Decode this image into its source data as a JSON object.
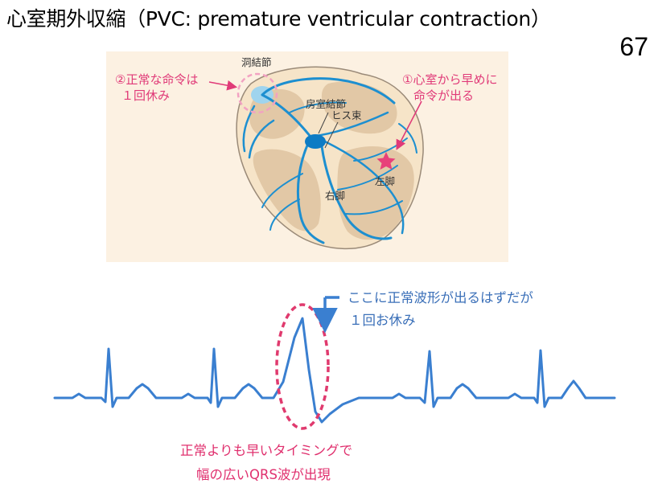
{
  "slide": {
    "title": "心室期外収縮（PVC: premature ventricular contraction）",
    "page_number": "67"
  },
  "heart": {
    "callout_left": [
      "②正常な命令は",
      "１回休み"
    ],
    "callout_right": [
      "①心室から早めに",
      "命令が出る"
    ],
    "sa_node": "洞結節",
    "av_node": "房室結節",
    "his_bundle": "ヒス束",
    "left_bundle": "左脚",
    "right_bundle": "右脚"
  },
  "ecg": {
    "note_top": [
      "ここに正常波形が出るはずだが",
      "１回お休み"
    ],
    "note_bottom": [
      "正常よりも早いタイミングで",
      "幅の広いQRS波が出現"
    ]
  },
  "colors": {
    "accent_pink": "#e03a78",
    "ecg_blue": "#3a7fd0",
    "conduction_blue": "#1d8fd0",
    "heart_fill": "#e2c8a6"
  }
}
